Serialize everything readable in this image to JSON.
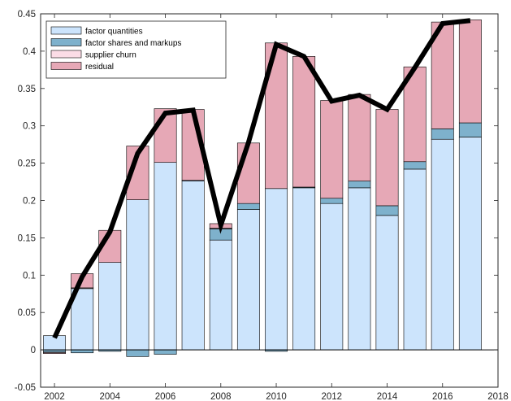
{
  "chart_data": {
    "type": "bar",
    "stacked": true,
    "x": [
      2002,
      2003,
      2004,
      2005,
      2006,
      2007,
      2008,
      2009,
      2010,
      2011,
      2012,
      2013,
      2014,
      2015,
      2016,
      2017
    ],
    "series": [
      {
        "name": "factor quantities",
        "color": "#cce4fc",
        "values": [
          0.019,
          0.082,
          0.117,
          0.201,
          0.251,
          0.226,
          0.147,
          0.188,
          0.216,
          0.217,
          0.196,
          0.217,
          0.18,
          0.242,
          0.282,
          0.285
        ]
      },
      {
        "name": "factor shares and markups",
        "color": "#7eb1cc",
        "values": [
          -0.003,
          -0.004,
          -0.002,
          -0.009,
          -0.006,
          0.001,
          0.015,
          0.008,
          -0.002,
          0.001,
          0.007,
          0.009,
          0.013,
          0.01,
          0.014,
          0.019
        ]
      },
      {
        "name": "supplier churn",
        "color": "#fbdce6",
        "values": [
          -0.001,
          0.001,
          0.0,
          0.0,
          0.0,
          0.0,
          0.001,
          0.0,
          0.0,
          0.0,
          0.0,
          0.0,
          0.0,
          0.0,
          0.0,
          0.0
        ]
      },
      {
        "name": "residual",
        "color": "#e6a8b6",
        "values": [
          -0.001,
          0.019,
          0.043,
          0.072,
          0.072,
          0.095,
          0.006,
          0.081,
          0.195,
          0.175,
          0.131,
          0.116,
          0.129,
          0.127,
          0.143,
          0.138
        ]
      }
    ],
    "line": {
      "color": "#000000",
      "values": [
        0.016,
        0.098,
        0.158,
        0.263,
        0.317,
        0.321,
        0.167,
        0.278,
        0.409,
        0.393,
        0.333,
        0.341,
        0.322,
        0.378,
        0.437,
        0.441
      ]
    },
    "xlim": [
      2001.5,
      2018
    ],
    "ylim": [
      -0.05,
      0.45
    ],
    "xticks": [
      "2002",
      "2004",
      "2006",
      "2008",
      "2010",
      "2012",
      "2014",
      "2016",
      "2018"
    ],
    "yticks": [
      "-0.05",
      "0",
      "0.05",
      "0.1",
      "0.15",
      "0.2",
      "0.25",
      "0.3",
      "0.35",
      "0.4",
      "0.45"
    ],
    "grid": false,
    "legend_position": "top-left"
  }
}
